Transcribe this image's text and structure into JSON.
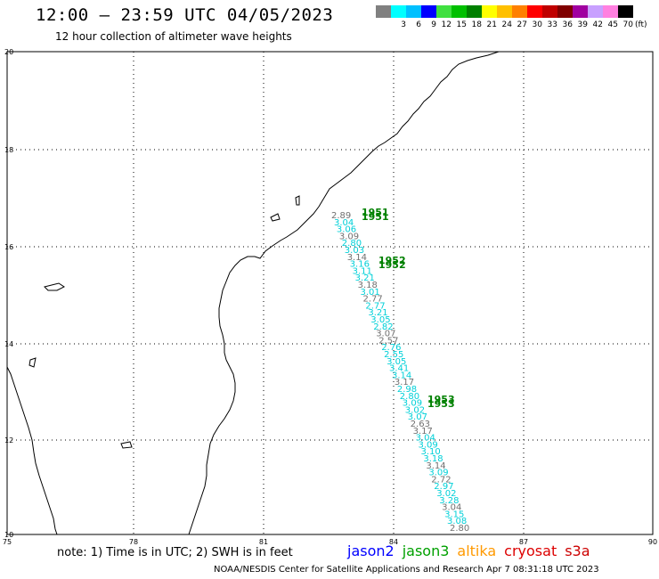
{
  "header": {
    "title": "12:00 – 23:59 UTC 04/05/2023",
    "subtitle": "12 hour collection of altimeter wave heights"
  },
  "colorbar": {
    "colors": [
      "#808080",
      "#00ffff",
      "#00c0ff",
      "#0000ff",
      "#40e040",
      "#00c000",
      "#008000",
      "#ffff00",
      "#ffc000",
      "#ff8000",
      "#ff0000",
      "#c00000",
      "#800000",
      "#a000a0",
      "#c8a0ff",
      "#ff80e0",
      "#000000"
    ],
    "labels": [
      "",
      "3",
      "6",
      "9",
      "12",
      "15",
      "18",
      "21",
      "24",
      "27",
      "30",
      "33",
      "36",
      "39",
      "42",
      "45",
      "70"
    ],
    "unit": "(ft)"
  },
  "axes": {
    "x_ticks": [
      "75",
      "78",
      "81",
      "84",
      "87",
      "90"
    ],
    "y_ticks": [
      "20",
      "18",
      "16",
      "14",
      "12",
      "10"
    ]
  },
  "track": {
    "color": "#00d0d8",
    "values": [
      "2.89",
      "3.04",
      "3.06",
      "3.09",
      "2.80",
      "3.03",
      "3.14",
      "3.16",
      "3.11",
      "3.21",
      "3.18",
      "3.01",
      "2.77",
      "2.77",
      "3.21",
      "3.05",
      "2.82",
      "3.07",
      "2.57",
      "2.76",
      "2.55",
      "3.05",
      "3.41",
      "3.14",
      "3.17",
      "2.98",
      "2.80",
      "3.09",
      "3.02",
      "3.07",
      "2.63",
      "3.17",
      "3.04",
      "3.09",
      "3.10",
      "3.18",
      "3.14",
      "3.09",
      "2.72",
      "2.97",
      "3.02",
      "3.28",
      "3.04",
      "3.15",
      "3.08",
      "2.80"
    ],
    "time_labels": [
      "1951",
      "1952",
      "1953"
    ],
    "time_color": "#008000"
  },
  "note": "note: 1) Time is in UTC; 2) SWH is in feet",
  "satellites": [
    {
      "name": "jason2",
      "color": "#0000ff"
    },
    {
      "name": "jason3",
      "color": "#00a000"
    },
    {
      "name": "altika",
      "color": "#ff9900"
    },
    {
      "name": "cryosat",
      "color": "#dd0000"
    },
    {
      "name": "s3a",
      "color": "#cc0000"
    }
  ],
  "credit": "NOAA/NESDIS Center for Satellite Applications and Research   Apr  7 08:31:18 UTC 2023"
}
